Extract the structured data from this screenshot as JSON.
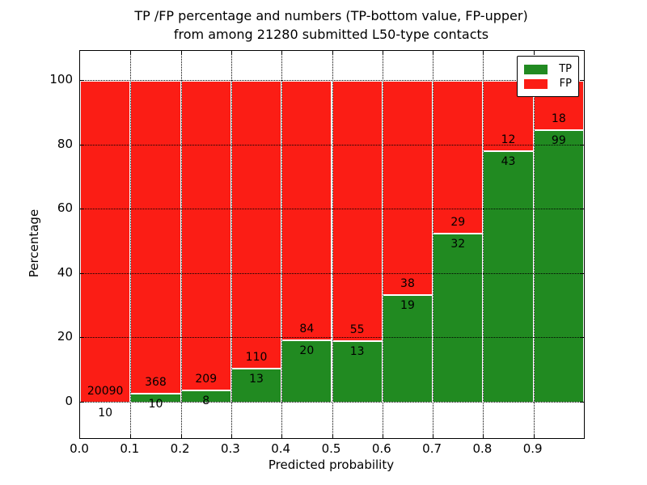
{
  "title": {
    "line1": "TP /FP percentage and numbers (TP-bottom value, FP-upper)",
    "line2": "from among 21280 submitted L50-type contacts"
  },
  "axes": {
    "xlabel": "Predicted probability",
    "ylabel": "Percentage",
    "x_ticklabels": [
      "0.0",
      "0.1",
      "0.2",
      "0.3",
      "0.4",
      "0.5",
      "0.6",
      "0.7",
      "0.8",
      "0.9"
    ],
    "y_ticklabels": [
      "0",
      "20",
      "40",
      "60",
      "80",
      "100"
    ],
    "y_tick_values": [
      0,
      20,
      40,
      60,
      80,
      100
    ]
  },
  "legend": {
    "items": [
      {
        "label": "TP",
        "color": "#218a21"
      },
      {
        "label": "FP",
        "color": "#fb1d15"
      }
    ]
  },
  "colors": {
    "tp": "#218a21",
    "fp": "#fb1d15",
    "bar_edge": "#ffffff",
    "grid": "#000000",
    "background": "#ffffff"
  },
  "chart_data": {
    "type": "bar",
    "stacked": true,
    "normalized_to": 100,
    "title": "TP /FP percentage and numbers (TP-bottom value, FP-upper) from among 21280 submitted L50-type contacts",
    "xlabel": "Predicted probability",
    "ylabel": "Percentage",
    "xlim": [
      0.0,
      1.0
    ],
    "ylim": [
      -11,
      109
    ],
    "grid": true,
    "legend_position": "upper right",
    "bin_edges": [
      0.0,
      0.1,
      0.2,
      0.3,
      0.4,
      0.5,
      0.6,
      0.7,
      0.8,
      0.9,
      1.0
    ],
    "categories": [
      "0.0-0.1",
      "0.1-0.2",
      "0.2-0.3",
      "0.3-0.4",
      "0.4-0.5",
      "0.5-0.6",
      "0.6-0.7",
      "0.7-0.8",
      "0.8-0.9",
      "0.9-1.0"
    ],
    "series": [
      {
        "name": "TP",
        "counts": [
          10,
          10,
          8,
          13,
          20,
          13,
          19,
          32,
          43,
          99
        ]
      },
      {
        "name": "FP",
        "counts": [
          20090,
          368,
          209,
          110,
          84,
          55,
          38,
          29,
          12,
          18
        ]
      }
    ],
    "tp_percent_of_bin": [
      0.05,
      2.65,
      3.69,
      10.57,
      19.23,
      19.12,
      33.33,
      52.46,
      78.18,
      84.62
    ],
    "total_submitted": 21280
  }
}
